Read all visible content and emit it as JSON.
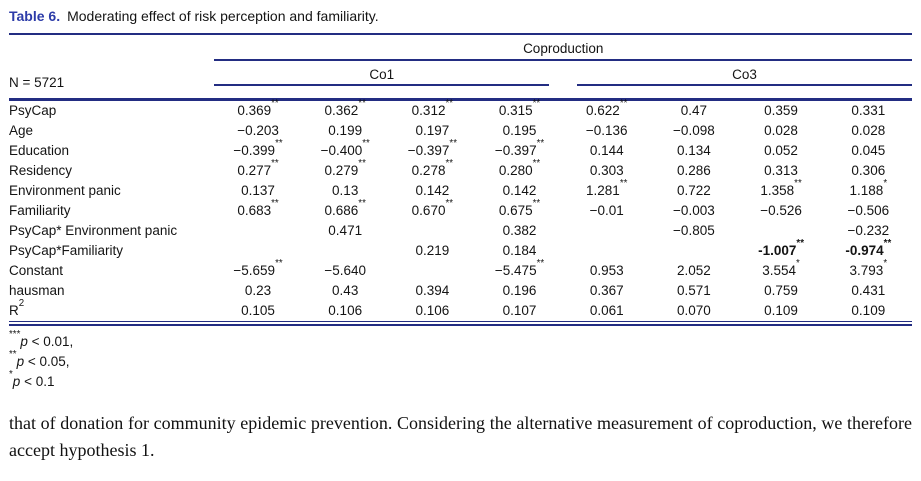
{
  "title": {
    "label": "Table 6.",
    "text": "Moderating effect of risk perception and familiarity."
  },
  "colors": {
    "rule_navy": "#232d82",
    "title_blue": "#2c3ba8"
  },
  "table": {
    "n_label": "N = 5721",
    "group_header": "Coproduction",
    "subgroups": [
      "Co1",
      "Co3"
    ],
    "rows": [
      {
        "label": {
          "v": "PsyCap"
        },
        "cells": [
          {
            "v": "0.369",
            "s": "**"
          },
          {
            "v": "0.362",
            "s": "**"
          },
          {
            "v": "0.312",
            "s": "**"
          },
          {
            "v": "0.315",
            "s": "**"
          },
          {
            "v": "0.622",
            "s": "**"
          },
          {
            "v": "0.47"
          },
          {
            "v": "0.359"
          },
          {
            "v": "0.331"
          }
        ]
      },
      {
        "label": {
          "v": "Age"
        },
        "cells": [
          {
            "v": "−0.203"
          },
          {
            "v": "0.199"
          },
          {
            "v": "0.197"
          },
          {
            "v": "0.195"
          },
          {
            "v": "−0.136"
          },
          {
            "v": "−0.098"
          },
          {
            "v": "0.028"
          },
          {
            "v": "0.028"
          }
        ]
      },
      {
        "label": {
          "v": "Education"
        },
        "cells": [
          {
            "v": "−0.399",
            "s": "**"
          },
          {
            "v": "−0.400",
            "s": "**"
          },
          {
            "v": "−0.397",
            "s": "**"
          },
          {
            "v": "−0.397",
            "s": "**"
          },
          {
            "v": "0.144"
          },
          {
            "v": "0.134"
          },
          {
            "v": "0.052"
          },
          {
            "v": "0.045"
          }
        ]
      },
      {
        "label": {
          "v": "Residency"
        },
        "cells": [
          {
            "v": "0.277",
            "s": "**"
          },
          {
            "v": "0.279",
            "s": "**"
          },
          {
            "v": "0.278",
            "s": "**"
          },
          {
            "v": "0.280",
            "s": "**"
          },
          {
            "v": "0.303"
          },
          {
            "v": "0.286"
          },
          {
            "v": "0.313"
          },
          {
            "v": "0.306"
          }
        ]
      },
      {
        "label": {
          "v": "Environment panic"
        },
        "cells": [
          {
            "v": "0.137"
          },
          {
            "v": "0.13"
          },
          {
            "v": "0.142"
          },
          {
            "v": "0.142"
          },
          {
            "v": "1.281",
            "s": "**"
          },
          {
            "v": "0.722"
          },
          {
            "v": "1.358",
            "s": "**"
          },
          {
            "v": "1.188",
            "s": "*"
          }
        ]
      },
      {
        "label": {
          "v": "Familiarity"
        },
        "cells": [
          {
            "v": "0.683",
            "s": "**"
          },
          {
            "v": "0.686",
            "s": "**"
          },
          {
            "v": "0.670",
            "s": "**"
          },
          {
            "v": "0.675",
            "s": "**"
          },
          {
            "v": "−0.01"
          },
          {
            "v": "−0.003"
          },
          {
            "v": "−0.526"
          },
          {
            "v": "−0.506"
          }
        ]
      },
      {
        "label": {
          "v": "PsyCap* Environment panic"
        },
        "cells": [
          {},
          {
            "v": "0.471"
          },
          {},
          {
            "v": "0.382"
          },
          {},
          {
            "v": "−0.805"
          },
          {},
          {
            "v": "−0.232"
          }
        ]
      },
      {
        "label": {
          "v": "PsyCap*Familiarity"
        },
        "cells": [
          {},
          {},
          {
            "v": "0.219"
          },
          {
            "v": "0.184"
          },
          {},
          {},
          {
            "v": "-1.007",
            "s": "**",
            "b": true
          },
          {
            "v": "-0.974",
            "s": "**",
            "b": true
          }
        ]
      },
      {
        "label": {
          "v": "Constant"
        },
        "cells": [
          {
            "v": "−5.659",
            "s": "**"
          },
          {
            "v": "−5.640"
          },
          {},
          {
            "v": "−5.475",
            "s": "**"
          },
          {
            "v": "0.953"
          },
          {
            "v": "2.052"
          },
          {
            "v": "3.554",
            "s": "*"
          },
          {
            "v": "3.793",
            "s": "*"
          }
        ]
      },
      {
        "label": {
          "v": "hausman"
        },
        "cells": [
          {
            "v": "0.23"
          },
          {
            "v": "0.43"
          },
          {
            "v": "0.394"
          },
          {
            "v": "0.196"
          },
          {
            "v": "0.367"
          },
          {
            "v": "0.571"
          },
          {
            "v": "0.759"
          },
          {
            "v": "0.431"
          }
        ]
      },
      {
        "label": {
          "v": "R",
          "s": "2"
        },
        "cells": [
          {
            "v": "0.105"
          },
          {
            "v": "0.106"
          },
          {
            "v": "0.106"
          },
          {
            "v": "0.107"
          },
          {
            "v": "0.061"
          },
          {
            "v": "0.070"
          },
          {
            "v": "0.109"
          },
          {
            "v": "0.109"
          }
        ]
      }
    ]
  },
  "footnotes": [
    {
      "stars": "***",
      "p": "p",
      "rest": " < 0.01,"
    },
    {
      "stars": "**",
      "p": "p",
      "rest": " < 0.05,"
    },
    {
      "stars": "*",
      "p": "p",
      "rest": " < 0.1"
    }
  ],
  "paragraph": "that of donation for community epidemic prevention. Considering the alternative measurement of coproduction, we therefore accept hypothesis 1."
}
